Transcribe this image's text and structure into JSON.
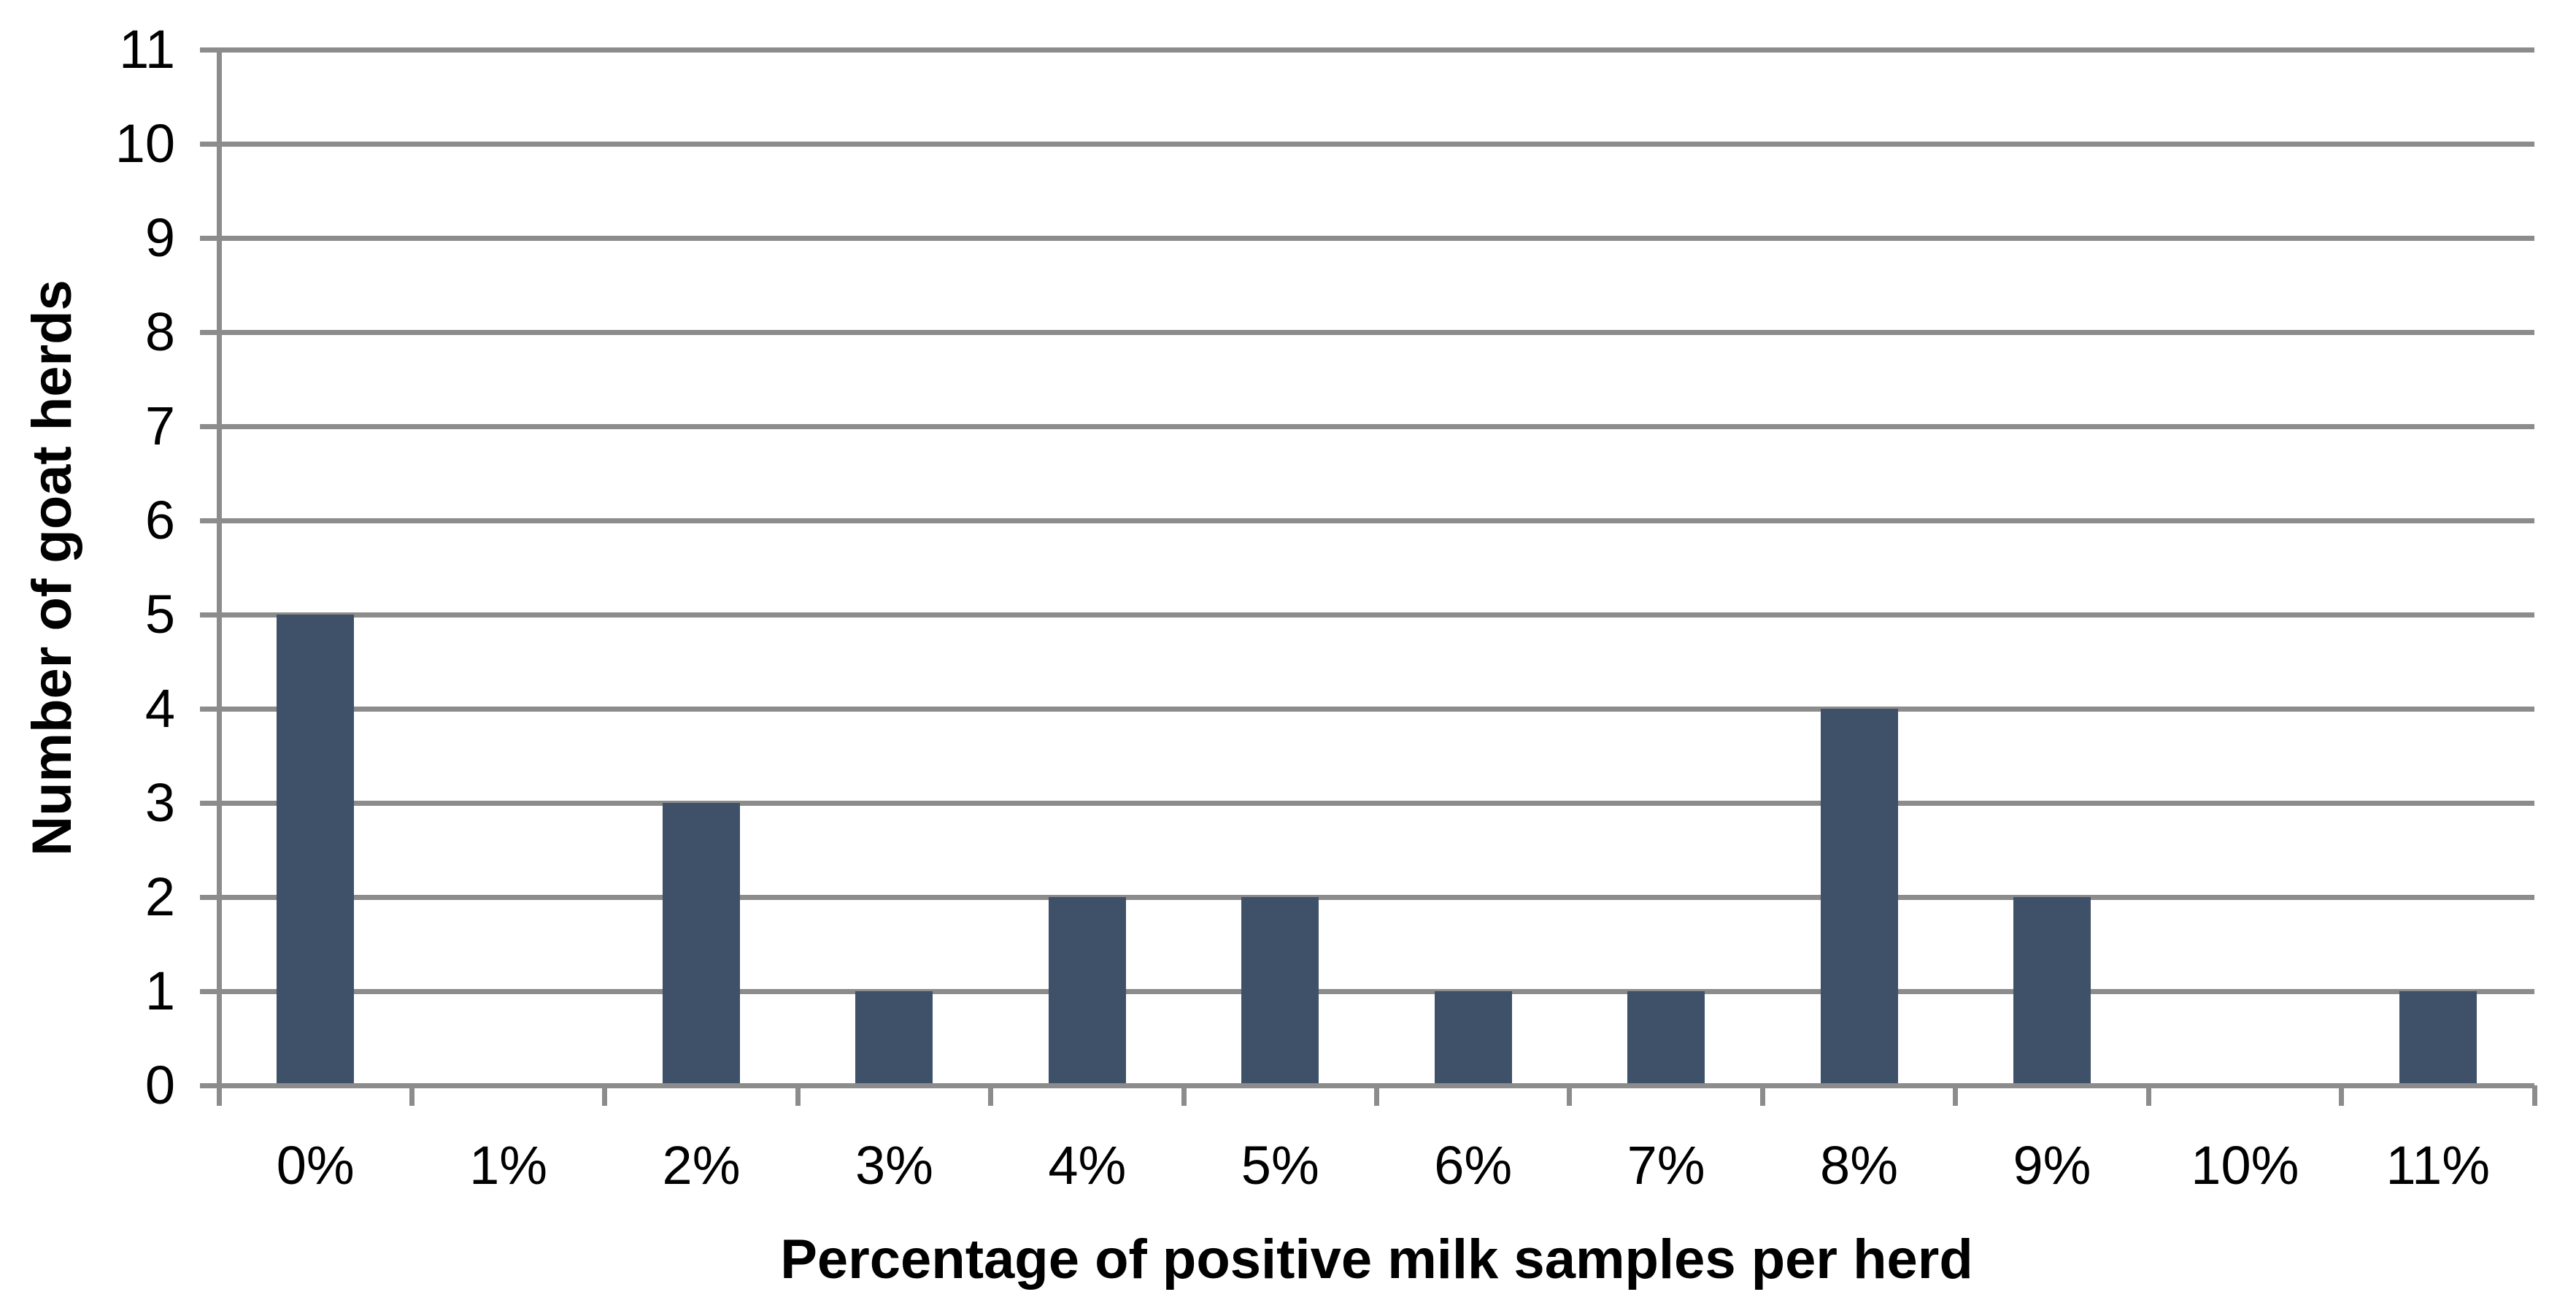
{
  "chart_data": {
    "type": "bar",
    "title": "",
    "categories": [
      "0%",
      "1%",
      "2%",
      "3%",
      "4%",
      "5%",
      "6%",
      "7%",
      "8%",
      "9%",
      "10%",
      "11%"
    ],
    "values": [
      5,
      0,
      3,
      1,
      2,
      2,
      1,
      1,
      4,
      2,
      0,
      1
    ],
    "xlabel": "Percentage of positive milk samples per herd",
    "ylabel": "Number of goat herds",
    "ylim": [
      0,
      11
    ],
    "ytick_step": 1,
    "yticks": [
      0,
      1,
      2,
      3,
      4,
      5,
      6,
      7,
      8,
      9,
      10,
      11
    ],
    "grid": "horizontal",
    "legend": "none",
    "colors": {
      "bar": "#3E5168",
      "gridline": "#8C8C8C",
      "axis": "#8C8C8C",
      "text": "#000000",
      "background": "#FFFFFF"
    }
  }
}
